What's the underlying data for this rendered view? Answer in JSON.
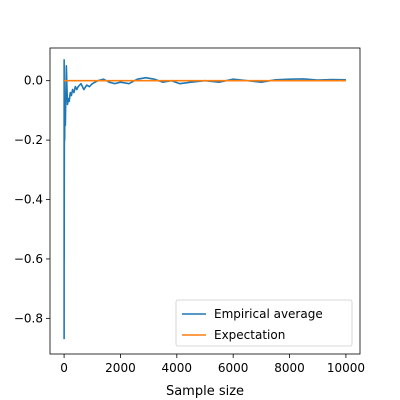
{
  "chart_data": {
    "type": "line",
    "title": "",
    "xlabel": "Sample size",
    "ylabel": "",
    "xlim": [
      -500,
      10500
    ],
    "ylim": [
      -0.92,
      0.11
    ],
    "xticks": [
      0,
      2000,
      4000,
      6000,
      8000,
      10000
    ],
    "xtick_labels": [
      "0",
      "2000",
      "4000",
      "6000",
      "8000",
      "10000"
    ],
    "yticks": [
      -0.8,
      -0.6,
      -0.4,
      -0.2,
      0.0
    ],
    "ytick_labels": [
      "−0.8",
      "−0.6",
      "−0.4",
      "−0.2",
      "0.0"
    ],
    "grid": false,
    "legend_position": "lower-right",
    "series": [
      {
        "name": "Empirical average",
        "color": "#1f77b4",
        "x": [
          1,
          2,
          3,
          5,
          8,
          12,
          20,
          30,
          45,
          60,
          80,
          100,
          120,
          150,
          180,
          220,
          260,
          300,
          350,
          400,
          450,
          500,
          600,
          700,
          800,
          900,
          1000,
          1200,
          1400,
          1600,
          1800,
          2000,
          2300,
          2600,
          2900,
          3200,
          3500,
          3800,
          4100,
          4500,
          5000,
          5500,
          6000,
          6500,
          7000,
          7500,
          8000,
          8500,
          9000,
          9500,
          10000
        ],
        "y": [
          -0.87,
          0.07,
          -0.6,
          -0.4,
          -0.25,
          -0.12,
          -0.2,
          -0.08,
          -0.15,
          -0.05,
          0.05,
          -0.02,
          -0.08,
          -0.06,
          -0.07,
          -0.04,
          -0.05,
          -0.03,
          -0.04,
          -0.02,
          -0.03,
          -0.02,
          -0.01,
          -0.03,
          -0.015,
          -0.02,
          -0.01,
          0.0,
          0.005,
          -0.005,
          -0.01,
          -0.005,
          -0.01,
          0.005,
          0.01,
          0.005,
          -0.005,
          0.0,
          -0.01,
          -0.005,
          0.0,
          -0.005,
          0.005,
          0.0,
          -0.005,
          0.003,
          0.005,
          0.006,
          0.002,
          0.004,
          0.003
        ]
      },
      {
        "name": "Expectation",
        "color": "#ff7f0e",
        "x": [
          0,
          10000
        ],
        "y": [
          0.0,
          0.0
        ]
      }
    ]
  }
}
